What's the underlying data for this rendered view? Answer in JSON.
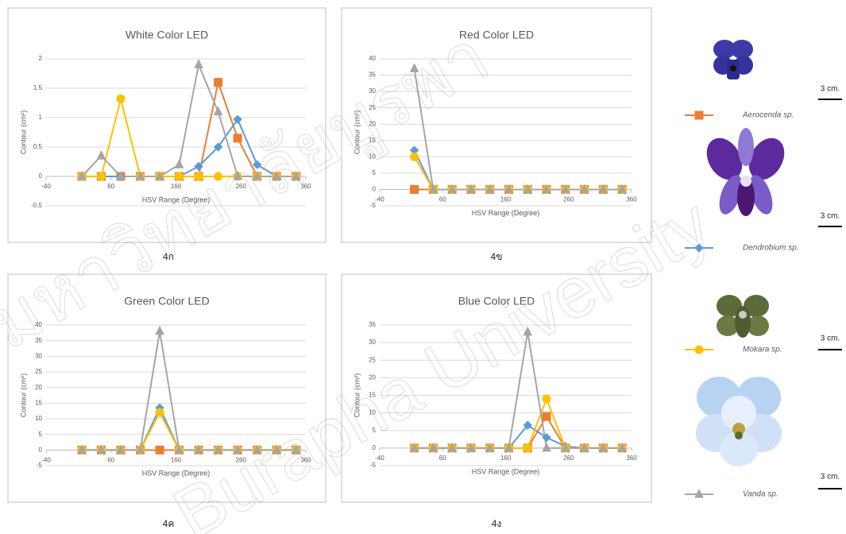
{
  "chart_data": [
    {
      "type": "line",
      "title": "White Color LED",
      "x_label": "HSV Range (Degree)",
      "y_label": "Contour (cm²)",
      "x": [
        15,
        45,
        75,
        105,
        135,
        165,
        195,
        225,
        255,
        285,
        315,
        345
      ],
      "series": [
        {
          "name": "Aerocenda sp.",
          "color": "#ed7d31",
          "marker": "square",
          "values": [
            0,
            0,
            0,
            0,
            0,
            0,
            0,
            1.6,
            0.65,
            0,
            0,
            0
          ]
        },
        {
          "name": "Dendrobium sp.",
          "color": "#5b9bd5",
          "marker": "diamond",
          "values": [
            0,
            0,
            0,
            0,
            0,
            0,
            0.17,
            0.5,
            0.97,
            0.2,
            0,
            0
          ]
        },
        {
          "name": "Mokara sp.",
          "color": "#ffc000",
          "marker": "circle",
          "values": [
            0,
            0,
            1.32,
            0,
            0,
            0,
            0,
            0,
            0,
            0,
            0,
            0
          ]
        },
        {
          "name": "Vanda sp.",
          "color": "#a5a5a5",
          "marker": "triangle",
          "values": [
            0,
            0.35,
            0,
            0,
            0,
            0.2,
            1.9,
            1.1,
            0,
            0,
            0,
            0
          ]
        }
      ],
      "xlim": [
        -40,
        360
      ],
      "xticks": [
        -40,
        60,
        160,
        260,
        360
      ],
      "ylim": [
        -0.5,
        2
      ],
      "yticks": [
        -0.5,
        0,
        0.5,
        1,
        1.5,
        2
      ],
      "grid": true
    },
    {
      "type": "line",
      "title": "Red Color LED",
      "x_label": "HSV Range (Degree)",
      "y_label": "Contour (cm²)",
      "x": [
        15,
        45,
        75,
        105,
        135,
        165,
        195,
        225,
        255,
        285,
        315,
        345
      ],
      "series": [
        {
          "name": "Aerocenda sp.",
          "color": "#ed7d31",
          "marker": "square",
          "values": [
            0,
            0,
            0,
            0,
            0,
            0,
            0,
            0,
            0,
            0,
            0,
            0
          ]
        },
        {
          "name": "Dendrobium sp.",
          "color": "#5b9bd5",
          "marker": "diamond",
          "values": [
            12,
            0,
            0,
            0,
            0,
            0,
            0,
            0,
            0,
            0,
            0,
            0
          ]
        },
        {
          "name": "Mokara sp.",
          "color": "#ffc000",
          "marker": "circle",
          "values": [
            10,
            0,
            0,
            0,
            0,
            0,
            0,
            0,
            0,
            0,
            0,
            0
          ]
        },
        {
          "name": "Vanda sp.",
          "color": "#a5a5a5",
          "marker": "triangle",
          "values": [
            37,
            0,
            0,
            0,
            0,
            0,
            0,
            0,
            0,
            0,
            0,
            0
          ]
        }
      ],
      "xlim": [
        -40,
        360
      ],
      "xticks": [
        -40,
        60,
        160,
        260,
        360
      ],
      "ylim": [
        -5,
        40
      ],
      "yticks": [
        -5,
        0,
        5,
        10,
        15,
        20,
        25,
        30,
        35,
        40
      ],
      "grid": true
    },
    {
      "type": "line",
      "title": "Green Color LED",
      "x_label": "HSV Range (Degree)",
      "y_label": "Contour (cm²)",
      "x": [
        15,
        45,
        75,
        105,
        135,
        165,
        195,
        225,
        255,
        285,
        315,
        345
      ],
      "series": [
        {
          "name": "Aerocenda sp.",
          "color": "#ed7d31",
          "marker": "square",
          "values": [
            0,
            0,
            0,
            0,
            0,
            0,
            0,
            0,
            0,
            0,
            0,
            0
          ]
        },
        {
          "name": "Dendrobium sp.",
          "color": "#5b9bd5",
          "marker": "diamond",
          "values": [
            0,
            0,
            0,
            0,
            13.5,
            0,
            0,
            0,
            0,
            0,
            0,
            0
          ]
        },
        {
          "name": "Mokara sp.",
          "color": "#ffc000",
          "marker": "circle",
          "values": [
            0,
            0,
            0,
            0,
            12,
            0,
            0,
            0,
            0,
            0,
            0,
            0
          ]
        },
        {
          "name": "Vanda sp.",
          "color": "#a5a5a5",
          "marker": "triangle",
          "values": [
            0,
            0,
            0,
            0,
            38,
            0,
            0,
            0,
            0,
            0,
            0,
            0
          ]
        }
      ],
      "xlim": [
        -40,
        360
      ],
      "xticks": [
        -40,
        60,
        160,
        260,
        360
      ],
      "ylim": [
        -5,
        40
      ],
      "yticks": [
        -5,
        0,
        5,
        10,
        15,
        20,
        25,
        30,
        35,
        40
      ],
      "grid": true
    },
    {
      "type": "line",
      "title": "Blue Color LED",
      "x_label": "HSV Range (Degree)",
      "y_label": "Contour (cm²)",
      "x": [
        15,
        45,
        75,
        105,
        135,
        165,
        195,
        225,
        255,
        285,
        315,
        345
      ],
      "series": [
        {
          "name": "Aerocenda sp.",
          "color": "#ed7d31",
          "marker": "square",
          "values": [
            0,
            0,
            0,
            0,
            0,
            0,
            0,
            9,
            0,
            0,
            0,
            0
          ]
        },
        {
          "name": "Dendrobium sp.",
          "color": "#5b9bd5",
          "marker": "diamond",
          "values": [
            0,
            0,
            0,
            0,
            0,
            0,
            6.5,
            3,
            0.5,
            0,
            0,
            0
          ]
        },
        {
          "name": "Mokara sp.",
          "color": "#ffc000",
          "marker": "circle",
          "values": [
            0,
            0,
            0,
            0,
            0,
            0,
            0,
            14,
            0,
            0,
            0,
            0
          ]
        },
        {
          "name": "Vanda sp.",
          "color": "#a5a5a5",
          "marker": "triangle",
          "values": [
            0,
            0,
            0,
            0,
            0,
            0,
            33,
            0,
            0,
            0,
            0,
            0
          ]
        }
      ],
      "xlim": [
        -40,
        360
      ],
      "xticks": [
        -40,
        60,
        160,
        260,
        360
      ],
      "ylim": [
        -5,
        35
      ],
      "yticks": [
        -5,
        0,
        5,
        10,
        15,
        20,
        25,
        30,
        35
      ],
      "grid": true
    }
  ],
  "figure": {
    "captions": [
      "4ก",
      "4ข",
      "4ค",
      "4ง"
    ],
    "scale_labels": [
      "3 cm.",
      "3 cm.",
      "3 cm.",
      "3 cm."
    ],
    "watermark": [
      "มหาวิทยาลัยบูรพา",
      "Burapha University"
    ]
  }
}
